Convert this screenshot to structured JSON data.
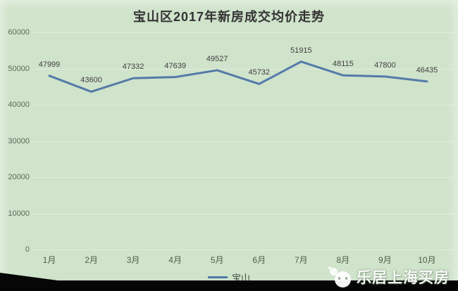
{
  "chart": {
    "title": "宝山区2017年新房成交均价走势",
    "legend_label": "宝山",
    "colors": {
      "background": "#d0e3cb",
      "line": "#537aa8",
      "grid": "#e2eedd",
      "title_text": "#333333",
      "data_label_text": "#404040",
      "axis_label_text": "#5d6b59",
      "footer_bg": "#060606",
      "watermark_text": "#ffffff"
    }
  },
  "chart_data": {
    "type": "line",
    "title": "宝山区2017年新房成交均价走势",
    "categories": [
      "1月",
      "2月",
      "3月",
      "4月",
      "5月",
      "6月",
      "7月",
      "8月",
      "9月",
      "10月"
    ],
    "series": [
      {
        "name": "宝山",
        "values": [
          47999,
          43600,
          47332,
          47639,
          49527,
          45732,
          51915,
          48115,
          47800,
          46435
        ]
      }
    ],
    "xlabel": "",
    "ylabel": "",
    "ylim": [
      0,
      60000
    ],
    "yticks": [
      0,
      10000,
      20000,
      30000,
      40000,
      50000,
      60000
    ],
    "grid": true,
    "data_labels": true,
    "legend_position": "bottom-center"
  },
  "footer": {
    "watermark_text": "乐居上海买房",
    "watermark_icon": "wechat-icon"
  }
}
